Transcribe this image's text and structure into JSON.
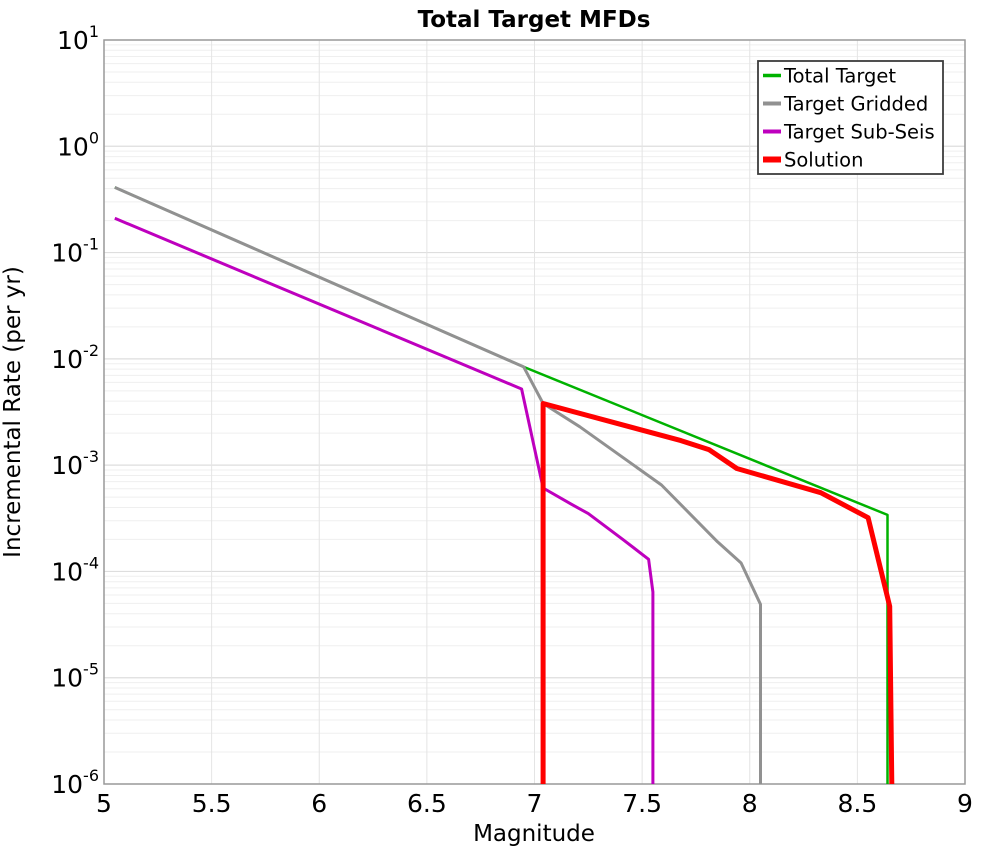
{
  "figure": {
    "background": "#ffffff",
    "frame_color": "#999999",
    "grid_minor_color": "#efefef",
    "grid_major_color": "#dedede",
    "grid_vertical_color": "#e4e4e4",
    "legend_border_color": "#3c3c3c"
  },
  "chart_data": {
    "type": "line",
    "title": "Total Target MFDs",
    "xlabel": "Magnitude",
    "ylabel": "Incremental Rate (per yr)",
    "x_axis": {
      "min": 5,
      "max": 9,
      "tick_values": [
        5,
        5.5,
        6,
        6.5,
        7,
        7.5,
        8,
        8.5,
        9
      ],
      "tick_labels": [
        "5",
        "5.5",
        "6",
        "6.5",
        "7",
        "7.5",
        "8",
        "8.5",
        "9"
      ]
    },
    "y_axis": {
      "scale": "log",
      "min_exp": -6,
      "max_exp": 1,
      "tick_exponents": [
        "1",
        "0",
        "-1",
        "-2",
        "-3",
        "-4",
        "-5",
        "-6"
      ],
      "tick_base": "10"
    },
    "grid": {
      "minor_horizontal": true,
      "vertical_step": 0.5
    },
    "legend": {
      "position": "upper-right"
    },
    "series": [
      {
        "name": "Total Target",
        "color": "#00b200",
        "line_width": 2.5,
        "points": [
          [
            5.05,
            0.41
          ],
          [
            6.95,
            0.0084
          ],
          [
            8.64,
            0.00034
          ],
          [
            8.64,
            1e-06
          ]
        ]
      },
      {
        "name": "Target Gridded",
        "color": "#919191",
        "line_width": 3,
        "points": [
          [
            5.05,
            0.41
          ],
          [
            6.95,
            0.0084
          ],
          [
            7.04,
            0.0038
          ],
          [
            7.21,
            0.0023
          ],
          [
            7.59,
            0.00065
          ],
          [
            7.85,
            0.00019
          ],
          [
            7.96,
            0.00012
          ],
          [
            8.05,
            4.9e-05
          ],
          [
            8.05,
            1e-06
          ]
        ]
      },
      {
        "name": "Target Sub-Seis",
        "color": "#be00be",
        "line_width": 3,
        "points": [
          [
            5.05,
            0.21
          ],
          [
            6.94,
            0.0052
          ],
          [
            7.04,
            0.00061
          ],
          [
            7.17,
            0.00043
          ],
          [
            7.25,
            0.00035
          ],
          [
            7.41,
            0.0002
          ],
          [
            7.53,
            0.00013
          ],
          [
            7.55,
            6.4e-05
          ],
          [
            7.55,
            1e-06
          ]
        ]
      },
      {
        "name": "Solution",
        "color": "#ff0000",
        "line_width": 5,
        "points": [
          [
            7.04,
            1e-06
          ],
          [
            7.04,
            0.0038
          ],
          [
            7.68,
            0.0017
          ],
          [
            7.81,
            0.0014
          ],
          [
            7.94,
            0.00093
          ],
          [
            8.33,
            0.00055
          ],
          [
            8.55,
            0.00032
          ],
          [
            8.65,
            4.7e-05
          ],
          [
            8.66,
            1e-06
          ]
        ]
      }
    ]
  }
}
